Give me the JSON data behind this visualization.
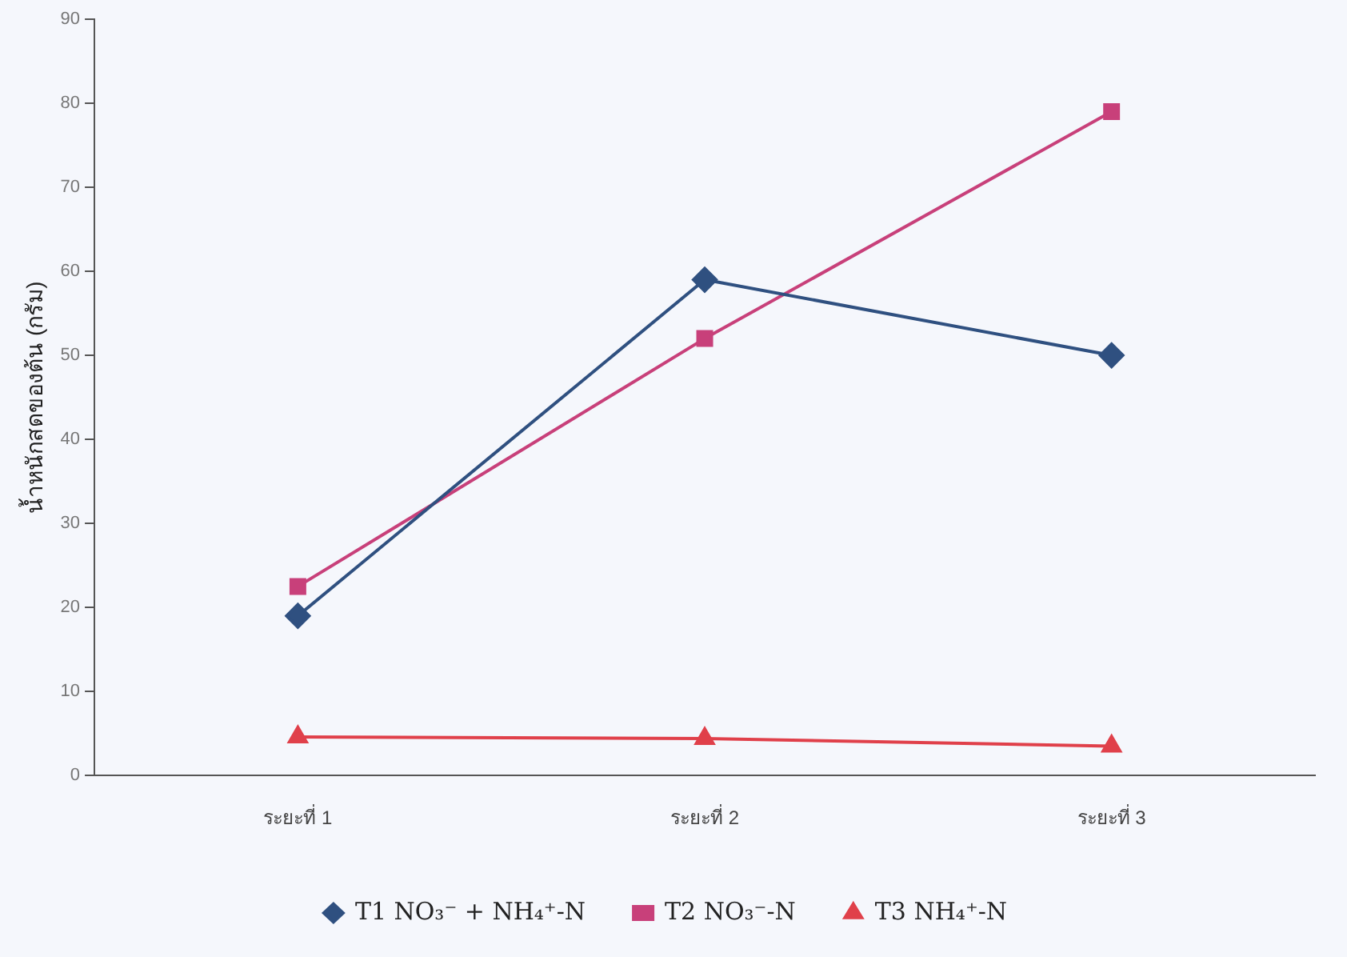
{
  "chart_data": {
    "type": "line",
    "ylabel": "น้ำหนักสดของต้น (กรัม)",
    "categories": [
      "ระยะที่ 1",
      "ระยะที่ 2",
      "ระยะที่ 3"
    ],
    "series": [
      {
        "name": "T1 NO₃⁻ + NH₄⁺-N",
        "color": "#2f5080",
        "marker": "diamond",
        "values": [
          19,
          59,
          50
        ]
      },
      {
        "name": "T2 NO₃⁻-N",
        "color": "#c8407a",
        "marker": "square",
        "values": [
          22.5,
          52,
          79
        ]
      },
      {
        "name": "T3 NH₄⁺-N",
        "color": "#e0404a",
        "marker": "triangle",
        "values": [
          4.6,
          4.4,
          3.5
        ]
      }
    ],
    "ylim": [
      0,
      90
    ],
    "yticks": [
      0,
      10,
      20,
      30,
      40,
      50,
      60,
      70,
      80,
      90
    ],
    "grid": false,
    "legend": "bottom",
    "line_style": "solid"
  }
}
